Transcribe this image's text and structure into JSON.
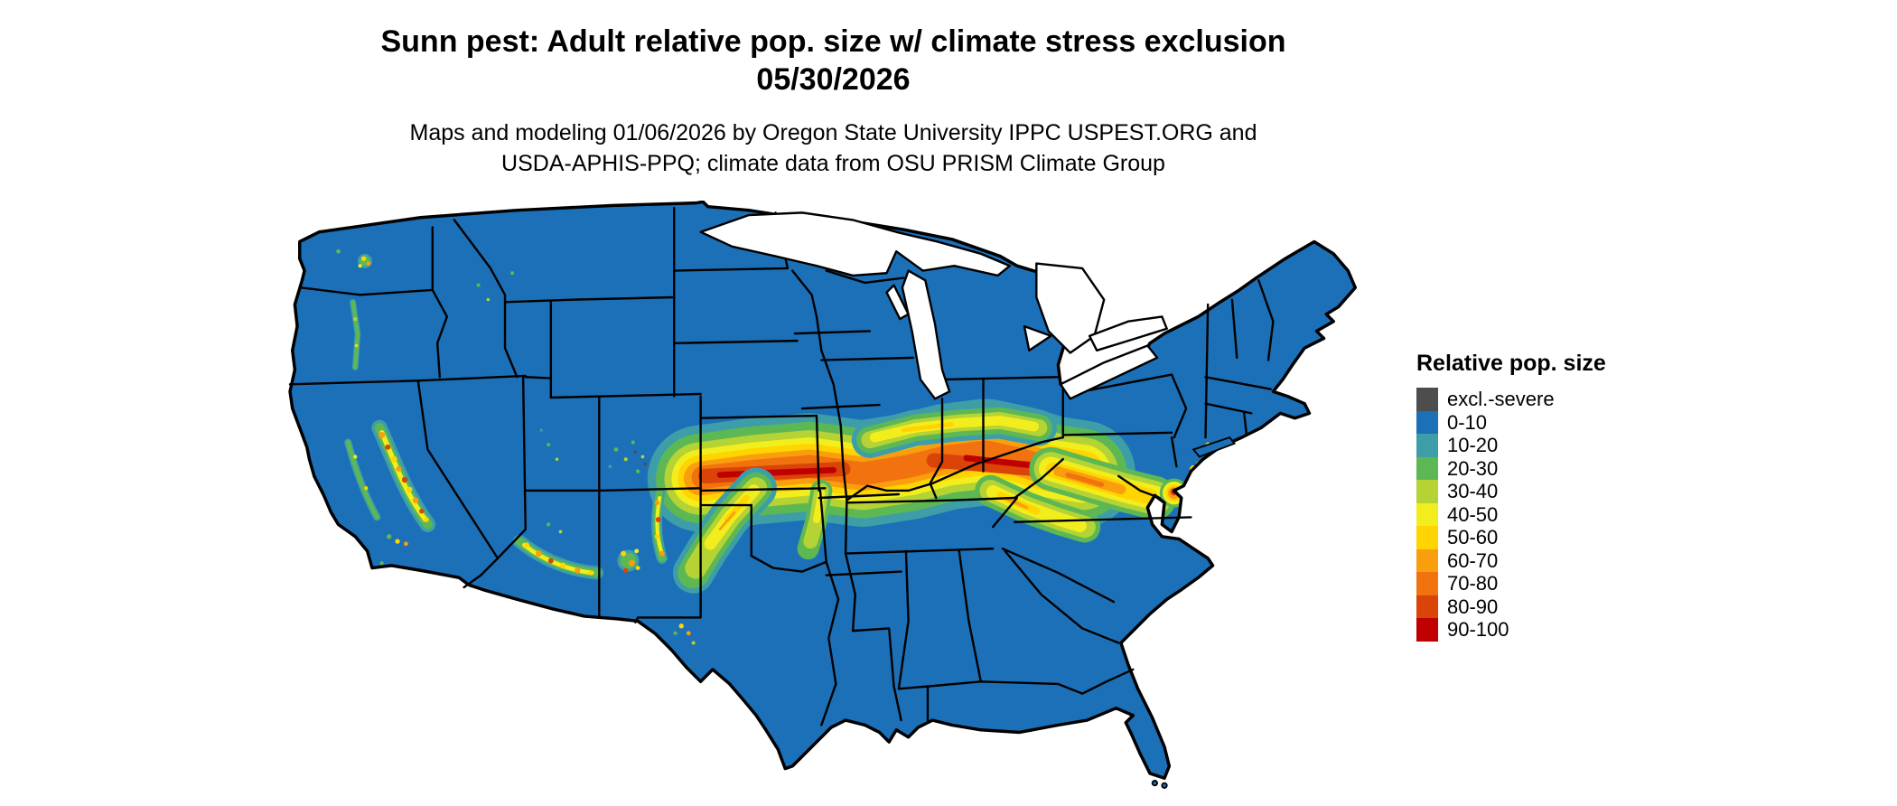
{
  "header": {
    "title": "Sunn pest: Adult relative pop. size w/ climate stress exclusion",
    "date": "05/30/2026",
    "credits_line1": "Maps and modeling 01/06/2026 by Oregon State University IPPC USPEST.ORG and",
    "credits_line2": "USDA-APHIS-PPQ; climate data from OSU PRISM Climate Group"
  },
  "map": {
    "base_color": "#1C70B8",
    "state_border_color": "#000000",
    "water_color": "#FFFFFF"
  },
  "legend": {
    "title": "Relative pop. size",
    "items": [
      {
        "label": "excl.-severe",
        "color": "#4D4D4D"
      },
      {
        "label": "0-10",
        "color": "#1C70B8"
      },
      {
        "label": "10-20",
        "color": "#3E9EA8"
      },
      {
        "label": "20-30",
        "color": "#5DB854"
      },
      {
        "label": "30-40",
        "color": "#B5D334"
      },
      {
        "label": "40-50",
        "color": "#F2EE1D"
      },
      {
        "label": "50-60",
        "color": "#FFD400"
      },
      {
        "label": "60-70",
        "color": "#F99E0C"
      },
      {
        "label": "70-80",
        "color": "#F1720E"
      },
      {
        "label": "80-90",
        "color": "#DB4408"
      },
      {
        "label": "90-100",
        "color": "#C00000"
      }
    ]
  }
}
